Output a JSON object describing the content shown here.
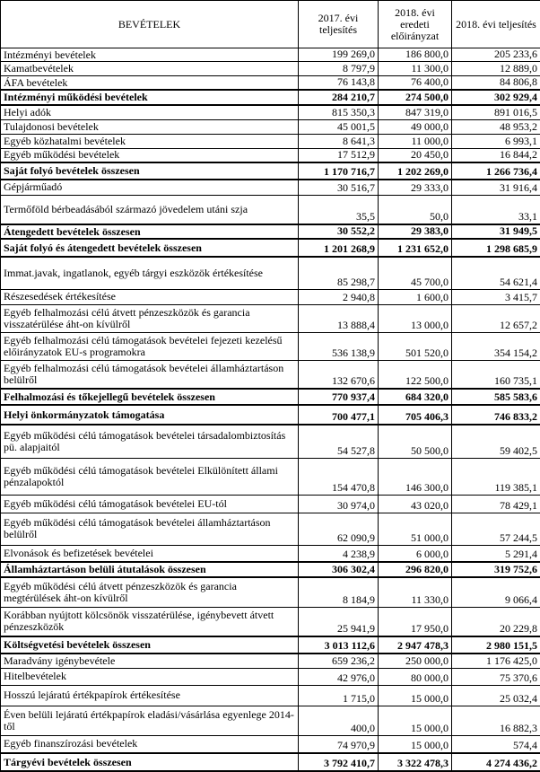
{
  "header": {
    "columns": [
      "BEVÉTELEK",
      "2017. évi teljesítés",
      "2018. évi eredeti előirányzat",
      "2018. évi teljesítés"
    ]
  },
  "table": {
    "rows": [
      [
        "Intézményi bevételek",
        "199 269,0",
        "186 800,0",
        "205 233,6"
      ],
      [
        "Kamatbevételek",
        "8 797,9",
        "11 300,0",
        "12 889,0"
      ],
      [
        "ÁFA bevételek",
        "76 143,8",
        "76 400,0",
        "84 806,8"
      ],
      [
        "Intézményi működési bevételek",
        "284 210,7",
        "274 500,0",
        "302 929,4"
      ],
      [
        "Helyi adók",
        "815 350,3",
        "847 319,0",
        "891 016,5"
      ],
      [
        "Tulajdonosi bevételek",
        "45 001,5",
        "49 000,0",
        "48 953,2"
      ],
      [
        "Egyéb közhatalmi bevételek",
        "8 641,3",
        "11 000,0",
        "6 993,1"
      ],
      [
        "Egyéb működési bevételek",
        "17 512,9",
        "20 450,0",
        "16 844,2"
      ],
      [
        "Saját folyó bevételek összesen",
        "1 170 716,7",
        "1 202 269,0",
        "1 266 736,4"
      ],
      [
        "Gépjárműadó",
        "30 516,7",
        "29 333,0",
        "31 916,4"
      ],
      [
        "Termőföld bérbeadásából származó jövedelem utáni szja",
        "35,5",
        "50,0",
        "33,1"
      ],
      [
        "Átengedett bevételek összesen",
        "30 552,2",
        "29 383,0",
        "31 949,5"
      ],
      [
        "Saját folyó és átengedett bevételek összesen",
        "1 201 268,9",
        "1 231 652,0",
        "1 298 685,9"
      ],
      [
        "Immat.javak, ingatlanok, egyéb tárgyi eszközök értékesítése",
        "85 298,7",
        "45 700,0",
        "54 621,4"
      ],
      [
        "Részesedések értékesítése",
        "2 940,8",
        "1 600,0",
        "3 415,7"
      ],
      [
        "Egyéb felhalmozási célú átvett pénzeszközök és garancia visszatérülése áht-on kívülről",
        "13 888,4",
        "13 000,0",
        "12 657,2"
      ],
      [
        "Egyéb felhalmozási célú támogatások bevételei fejezeti kezelésű előirányzatok EU-s programokra",
        "536 138,9",
        "501 520,0",
        "354 154,2"
      ],
      [
        "Egyéb felhalmozási célú támogatások bevételei államháztartáson belülről",
        "132 670,6",
        "122 500,0",
        "160 735,1"
      ],
      [
        "Felhalmozási és tőkejellegű bevételek összesen",
        "770 937,4",
        "684 320,0",
        "585 583,6"
      ],
      [
        "Helyi önkormányzatok támogatása",
        "700 477,1",
        "705 406,3",
        "746 833,2"
      ],
      [
        "Egyéb működési célú támogatások bevételei társadalombiztosítás pü. alapjaitól",
        "54 527,8",
        "50 500,0",
        "59 402,5"
      ],
      [
        "Egyéb működési célú támogatások bevételei Elkülönített állami pénzalapoktól",
        "154 470,8",
        "146 300,0",
        "119 385,1"
      ],
      [
        "Egyéb működési célú támogatások bevételei EU-tól",
        "30 974,0",
        "43 020,0",
        "78 429,1"
      ],
      [
        "Egyéb működési célú támogatások bevételei államháztartáson belülről",
        "62 090,9",
        "51 000,0",
        "57 244,5"
      ],
      [
        "Elvonások és befizetések bevételei",
        "4 238,9",
        "6 000,0",
        "5 291,4"
      ],
      [
        "Államháztartáson belüli átutalások összesen",
        "306 302,4",
        "296 820,0",
        "319 752,6"
      ],
      [
        "Egyéb működési célú átvett pénzeszközök és garancia megtérülések áht-on kívülről",
        "8 184,9",
        "11 330,0",
        "9 066,4"
      ],
      [
        "Korábban nyújtott kölcsönök visszatérülése, igénybevett átvett pénzeszközök",
        "25 941,9",
        "17 950,0",
        "20 229,8"
      ],
      [
        "Költségvetési bevételek összesen",
        "3 013 112,6",
        "2 947 478,3",
        "2 980 151,5"
      ],
      [
        "Maradvány igénybevétele",
        "659 236,2",
        "250 000,0",
        "1 176 425,0"
      ],
      [
        "Hitelbevételek",
        "42 976,0",
        "80 000,0",
        "75 370,6"
      ],
      [
        "Hosszú lejáratú értékpapírok értékesítése",
        "1 715,0",
        "15 000,0",
        "25 032,4"
      ],
      [
        "Éven belüli lejáratú értékpapírok eladási/vásárlása egyenlege 2014-től",
        "400,0",
        "15 000,0",
        "16 882,3"
      ],
      [
        "Egyéb finanszírozási bevételek",
        "74 970,9",
        "15 000,0",
        "574,4"
      ],
      [
        "Tárgyévi bevételek összesen",
        "3 792 410,7",
        "3 322 478,3",
        "4 274 436,2"
      ]
    ]
  }
}
